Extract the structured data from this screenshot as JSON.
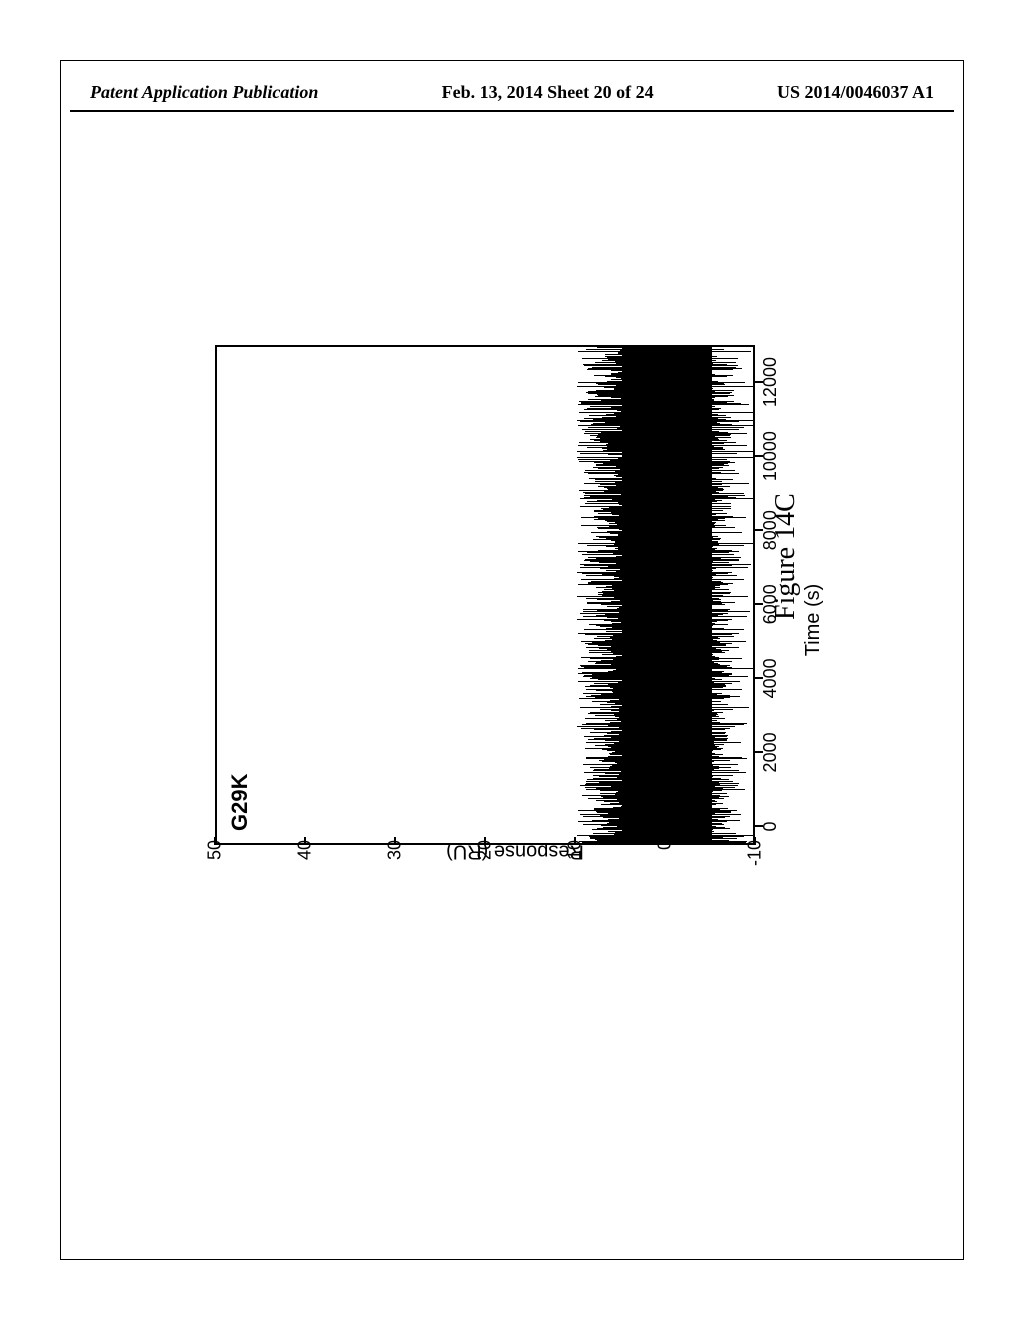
{
  "header": {
    "left": "Patent Application Publication",
    "mid": "Feb. 13, 2014  Sheet 20 of 24",
    "right": "US 2014/0046037 A1"
  },
  "chart": {
    "type": "line",
    "inner_label": "G29K",
    "y_label": "Response (RU)",
    "x_label": "Time (s)",
    "y_ticks": [
      -10,
      0,
      10,
      20,
      30,
      40,
      50
    ],
    "y_lim": [
      -10,
      50
    ],
    "x_ticks": [
      0,
      2000,
      4000,
      6000,
      8000,
      10000,
      12000
    ],
    "x_lim": [
      -500,
      13000
    ],
    "noise_center": 0,
    "noise_band_half": 5,
    "noise_spike_max": 10,
    "line_color": "#000000",
    "background_color": "#ffffff",
    "border_color": "#000000",
    "tick_fontsize": 18,
    "label_fontsize": 20,
    "inner_label_fontsize": 22,
    "noise_spike_count": 480
  },
  "caption": "Figure 14C"
}
